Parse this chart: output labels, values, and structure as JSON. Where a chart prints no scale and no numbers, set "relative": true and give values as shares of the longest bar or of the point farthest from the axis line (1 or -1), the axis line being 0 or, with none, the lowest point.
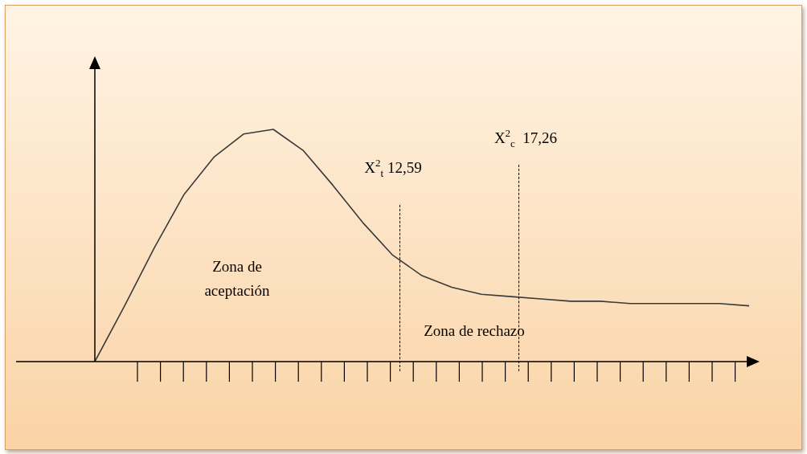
{
  "chart_data": {
    "type": "line",
    "relative": true,
    "categories": [
      null,
      null,
      null,
      null,
      null,
      null,
      null,
      null,
      null,
      null,
      null,
      null,
      null,
      null,
      null,
      null,
      null,
      null,
      null,
      null,
      null,
      null,
      null
    ],
    "series": [
      {
        "color": "#3a3a3a",
        "values": [
          0,
          0.24,
          0.49,
          0.72,
          0.88,
          0.98,
          1,
          0.91,
          0.76,
          0.6,
          0.46,
          0.37,
          0.32,
          0.29,
          0.28,
          0.27,
          0.26,
          0.26,
          0.25,
          0.25,
          0.25,
          0.25,
          0.24
        ]
      }
    ],
    "annotations": [
      "X$^{2}$$_{t}$ 12,59",
      "X$^{2}$$_{c}$  17,26",
      "Zona de\naceptación",
      "Zona de rechazo"
    ],
    "legend": false,
    "marker": "none",
    "line_style": "solid"
  }
}
